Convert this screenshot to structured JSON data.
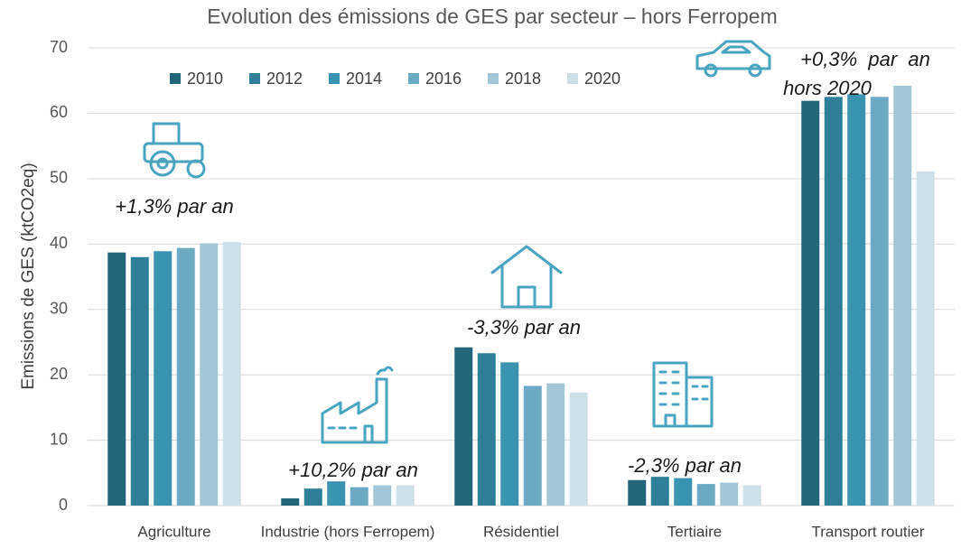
{
  "chart_data": {
    "type": "bar",
    "title": "Evolution des émissions de GES par secteur – hors Ferropem",
    "y_label": "Emissions de GES (ktCO2eq)",
    "categories": [
      "Agriculture",
      "Industrie (hors Ferropem)",
      "Résidentiel",
      "Tertiaire",
      "Transport routier"
    ],
    "series": [
      {
        "name": "2010",
        "color": "#23667a",
        "values": [
          38.7,
          1.1,
          24.2,
          3.9,
          61.9
        ]
      },
      {
        "name": "2012",
        "color": "#2e7f97",
        "values": [
          38.0,
          2.6,
          23.3,
          4.4,
          62.5
        ]
      },
      {
        "name": "2014",
        "color": "#3a93b0",
        "values": [
          38.9,
          3.7,
          21.9,
          4.2,
          62.9
        ]
      },
      {
        "name": "2016",
        "color": "#6aaac3",
        "values": [
          39.4,
          2.8,
          18.3,
          3.3,
          62.5
        ]
      },
      {
        "name": "2018",
        "color": "#a3c7d6",
        "values": [
          40.1,
          3.1,
          18.7,
          3.5,
          64.2
        ]
      },
      {
        "name": "2020",
        "color": "#cfdfe7",
        "values": [
          40.3,
          3.1,
          17.3,
          3.1,
          51.1
        ]
      }
    ],
    "annotations": [
      "+1,3% par an",
      "+10,2% par an",
      "-3,3% par an",
      "-2,3% par an",
      "+0,3%  par  an",
      "hors 2020"
    ],
    "ylim": [
      0,
      70
    ],
    "yticks": [
      0,
      10,
      20,
      30,
      40,
      50,
      60,
      70
    ],
    "grid": true,
    "legend": "top"
  }
}
